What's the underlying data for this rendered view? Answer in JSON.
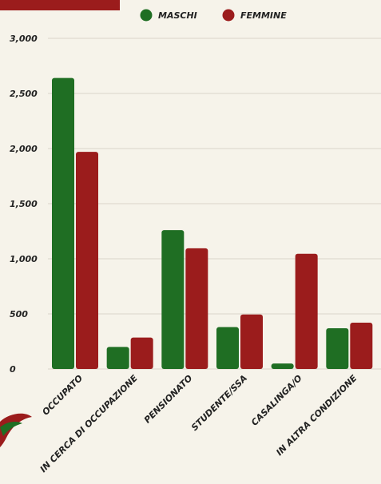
{
  "chart_data": {
    "type": "bar",
    "categories": [
      "OCCUPATO",
      "IN CERCA DI OCCUPAZIONE",
      "PENSIONATO",
      "STUDENTE/SSA",
      "CASALINGA/O",
      "IN ALTRA CONDIZIONE"
    ],
    "series": [
      {
        "name": "MASCHI",
        "color": "#1f6e23",
        "values": [
          2640,
          200,
          1260,
          380,
          50,
          370
        ]
      },
      {
        "name": "FEMMINE",
        "color": "#9b1c1c",
        "values": [
          1970,
          285,
          1095,
          495,
          1045,
          420
        ]
      }
    ],
    "yticks": [
      "0",
      "500",
      "1,000",
      "1,500",
      "2,000",
      "2,500",
      "3,000"
    ],
    "ylim": [
      0,
      3000
    ],
    "grid": true,
    "legend_position": "top-center",
    "title": "",
    "xlabel": "",
    "ylabel": ""
  }
}
